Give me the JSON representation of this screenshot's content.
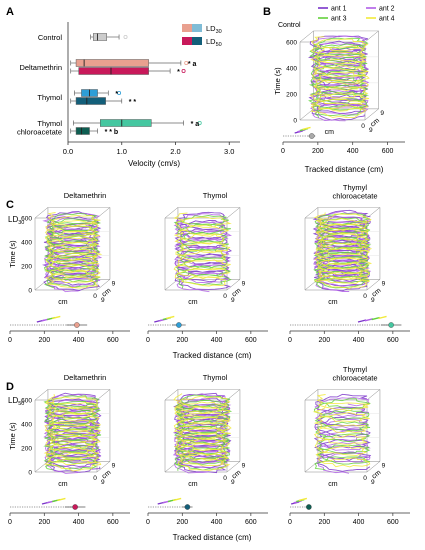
{
  "panels": {
    "A": {
      "letter": "A"
    },
    "B": {
      "letter": "B",
      "label": "Control"
    },
    "C": {
      "letter": "C",
      "dose": "LD",
      "dose_sub": "30"
    },
    "D": {
      "letter": "D",
      "dose": "LD",
      "dose_sub": "50"
    }
  },
  "legend_dose": [
    {
      "label": "LD",
      "sub": "30",
      "colors": [
        "#e9a08f",
        "#7fbcd6"
      ]
    },
    {
      "label": "LD",
      "sub": "50",
      "colors": [
        "#c8195a",
        "#135f7a"
      ]
    }
  ],
  "legend_ants": [
    {
      "label": "ant 1",
      "color": "#7a34c9"
    },
    {
      "label": "ant 2",
      "color": "#b05ee8"
    },
    {
      "label": "ant 3",
      "color": "#62d13a"
    },
    {
      "label": "ant 4",
      "color": "#f1ea3a"
    }
  ],
  "traj_labels": {
    "time_axis": "Time (s)",
    "cm": "cm",
    "nine": "9",
    "zero": "0",
    "time_ticks": [
      "0",
      "200",
      "400",
      "600"
    ]
  },
  "chart_data": [
    {
      "type": "boxplot",
      "panel": "A",
      "xlabel": "Velocity (cm/s)",
      "xlim": [
        0,
        3.2
      ],
      "xticks": [
        "0.0",
        "1.0",
        "2.0",
        "3.0"
      ],
      "categories": [
        "Control",
        "Deltamethrin",
        "Thymol",
        "Thymol\nchloroacetate"
      ],
      "series": [
        {
          "name": "LD30",
          "boxes": [
            {
              "category": "Control",
              "min": 0.42,
              "q1": 0.47,
              "median": 0.55,
              "q3": 0.72,
              "max": 0.95,
              "outliers": [
                1.07
              ],
              "color": "#cccccc"
            },
            {
              "category": "Deltamethrin",
              "min": 0.05,
              "q1": 0.15,
              "median": 0.3,
              "q3": 1.5,
              "max": 2.1,
              "outliers": [
                2.2
              ],
              "color": "#e9a08f",
              "marks": "* a"
            },
            {
              "category": "Thymol",
              "min": 0.12,
              "q1": 0.25,
              "median": 0.4,
              "q3": 0.55,
              "max": 0.75,
              "outliers": [
                0.95
              ],
              "color": "#2e9ed6",
              "marks": "*"
            },
            {
              "category": "Thymol\nchloroacetate",
              "min": 0.1,
              "q1": 0.6,
              "median": 1.0,
              "q3": 1.55,
              "max": 2.15,
              "outliers": [
                2.45
              ],
              "color": "#45c7a0",
              "marks": "* a"
            }
          ]
        },
        {
          "name": "LD50",
          "boxes": [
            {
              "category": "Deltamethrin",
              "min": 0.05,
              "q1": 0.2,
              "median": 0.8,
              "q3": 1.5,
              "max": 1.9,
              "outliers": [
                2.15
              ],
              "color": "#c8195a",
              "marks": "*"
            },
            {
              "category": "Thymol",
              "min": 0.05,
              "q1": 0.15,
              "median": 0.35,
              "q3": 0.7,
              "max": 1.0,
              "outliers": [],
              "color": "#135f7a",
              "marks": "* *"
            },
            {
              "category": "Thymol\nchloroacetate",
              "min": 0.05,
              "q1": 0.15,
              "median": 0.25,
              "q3": 0.4,
              "max": 0.55,
              "outliers": [],
              "color": "#0e5e52",
              "marks": "* * b"
            }
          ]
        }
      ]
    },
    {
      "type": "scatter",
      "panel": "B",
      "label": "Control",
      "xlabel": "Tracked distance (cm)",
      "xticks": [
        0,
        200,
        400,
        600
      ],
      "xlim": [
        0,
        700
      ],
      "summary": {
        "mean": 165,
        "sd": 20,
        "color": "#aaaaaa"
      },
      "ant_points": [
        90,
        105,
        120,
        135
      ]
    },
    {
      "type": "scatter",
      "panel": "C",
      "xlabel": "Tracked distance (cm)",
      "xticks": [
        0,
        200,
        400,
        600
      ],
      "xlim": [
        0,
        700
      ],
      "subplots": [
        {
          "label": "Deltamethrin",
          "mean": 390,
          "sd": 60,
          "color": "#e9a08f",
          "ant_points": [
            180,
            210,
            240,
            270
          ]
        },
        {
          "label": "Thymol",
          "mean": 180,
          "sd": 40,
          "color": "#2e9ed6",
          "ant_points": [
            60,
            90,
            110,
            130
          ]
        },
        {
          "label": "Thymyl\nchloroacetate",
          "mean": 590,
          "sd": 60,
          "color": "#45c7a0",
          "ant_points": [
            420,
            460,
            500,
            540
          ]
        }
      ]
    },
    {
      "type": "scatter",
      "panel": "D",
      "xlabel": "Tracked distance (cm)",
      "xticks": [
        0,
        200,
        400,
        600
      ],
      "xlim": [
        0,
        700
      ],
      "subplots": [
        {
          "label": "Deltamethrin",
          "mean": 380,
          "sd": 60,
          "color": "#c8195a",
          "ant_points": [
            210,
            240,
            270,
            300
          ]
        },
        {
          "label": "Thymol",
          "mean": 230,
          "sd": 30,
          "color": "#135f7a",
          "ant_points": [
            80,
            110,
            140,
            170
          ]
        },
        {
          "label": "Thymyl\nchloroacetate",
          "mean": 110,
          "sd": 10,
          "color": "#0e5e52",
          "ant_points": [
            30,
            45,
            60,
            75
          ]
        }
      ]
    }
  ]
}
